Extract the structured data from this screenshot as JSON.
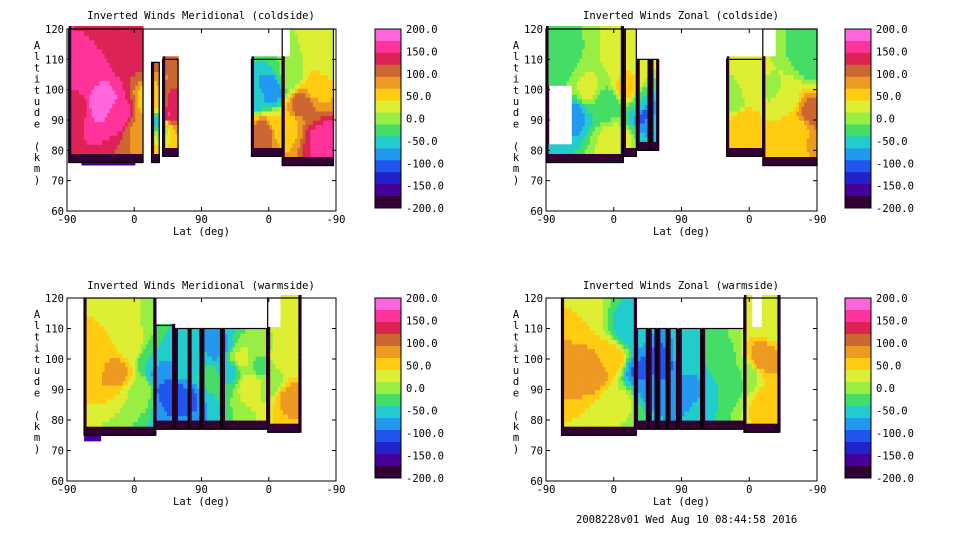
{
  "footer": "2008228v01 Wed Aug 10 08:44:58 2016",
  "colorbar": {
    "ticks": [
      "200.0",
      "150.0",
      "100.0",
      "50.0",
      "0.0",
      "-50.0",
      "-100.0",
      "-150.0",
      "-200.0"
    ],
    "colors": [
      "#ff66dd",
      "#ff3399",
      "#dd2255",
      "#cc6633",
      "#ee9922",
      "#ffcc11",
      "#ddee33",
      "#99ee44",
      "#44dd66",
      "#22cccc",
      "#2299ee",
      "#2255ee",
      "#2222cc",
      "#440099",
      "#330033"
    ]
  },
  "chart_data": [
    {
      "type": "heatmap",
      "title": "Inverted Winds Meridional (coldside)",
      "xlabel": "Lat (deg)",
      "ylabel": "Altitude (km)",
      "x_ticks": [
        "-90",
        "0",
        "90",
        "0",
        "-90"
      ],
      "y_ticks": [
        "60",
        "70",
        "80",
        "90",
        "100",
        "110",
        "120"
      ],
      "ylim": [
        60,
        120
      ],
      "zlim": [
        -200,
        200
      ],
      "regions": [
        {
          "x": [
            -88,
            -1
          ],
          "y": [
            76,
            120
          ],
          "bottom_x": [
            -73,
            -10
          ],
          "bottom_y": 75
        },
        {
          "x": [
            9,
            18
          ],
          "y": [
            76,
            109
          ]
        },
        {
          "x": [
            22,
            40
          ],
          "y": [
            78,
            110
          ]
        },
        {
          "x": [
            126,
            162
          ],
          "y": [
            78,
            110
          ]
        },
        {
          "x": [
            162,
            222
          ],
          "y": [
            75,
            120
          ],
          "top_cut_x": [
            162,
            171
          ],
          "top_cut_y": 110
        }
      ],
      "values": [
        [
          [
            -82,
            96,
            120
          ],
          [
            -70,
            102,
            170
          ],
          [
            -50,
            96,
            190
          ],
          [
            -30,
            92,
            170
          ],
          [
            -10,
            112,
            130
          ],
          [
            -5,
            88,
            90
          ],
          [
            12,
            96,
            40
          ],
          [
            18,
            90,
            -60
          ],
          [
            28,
            92,
            150
          ],
          [
            36,
            96,
            130
          ],
          [
            132,
            98,
            -60
          ],
          [
            140,
            86,
            110
          ],
          [
            150,
            100,
            -90
          ],
          [
            160,
            88,
            40
          ],
          [
            172,
            104,
            0
          ],
          [
            185,
            96,
            110
          ],
          [
            200,
            100,
            60
          ],
          [
            212,
            84,
            160
          ],
          [
            220,
            110,
            20
          ]
        ]
      ]
    },
    {
      "type": "heatmap",
      "title": "Inverted Winds Zonal (coldside)",
      "xlabel": "Lat (deg)",
      "ylabel": "Altitude (km)",
      "x_ticks": [
        "-90",
        "0",
        "90",
        "0",
        "-90"
      ],
      "y_ticks": [
        "60",
        "70",
        "80",
        "90",
        "100",
        "110",
        "120"
      ],
      "ylim": [
        60,
        120
      ],
      "zlim": [
        -200,
        200
      ],
      "regions": [
        {
          "x": [
            -90,
            -1
          ],
          "y": [
            76,
            120
          ],
          "hole": [
            -88,
            -62,
            82,
            100
          ]
        },
        {
          "x": [
            0,
            15
          ],
          "y": [
            78,
            120
          ]
        },
        {
          "x": [
            16,
            30
          ],
          "y": [
            80,
            110
          ]
        },
        {
          "x": [
            32,
            40
          ],
          "y": [
            80,
            110
          ]
        },
        {
          "x": [
            120,
            162
          ],
          "y": [
            78,
            110
          ]
        },
        {
          "x": [
            162,
            225
          ],
          "y": [
            75,
            120
          ],
          "top_cut_x": [
            162,
            175
          ],
          "top_cut_y": 110
        }
      ],
      "values": [
        [
          [
            -80,
            110,
            -30
          ],
          [
            -60,
            92,
            -80
          ],
          [
            -40,
            100,
            20
          ],
          [
            -20,
            96,
            -40
          ],
          [
            -8,
            84,
            30
          ],
          [
            5,
            100,
            60
          ],
          [
            12,
            112,
            40
          ],
          [
            20,
            96,
            -40
          ],
          [
            28,
            92,
            -110
          ],
          [
            36,
            90,
            -60
          ],
          [
            128,
            96,
            0
          ],
          [
            140,
            90,
            60
          ],
          [
            150,
            100,
            20
          ],
          [
            160,
            86,
            40
          ],
          [
            172,
            100,
            10
          ],
          [
            190,
            96,
            30
          ],
          [
            205,
            88,
            60
          ],
          [
            218,
            92,
            120
          ],
          [
            222,
            110,
            -40
          ]
        ]
      ]
    },
    {
      "type": "heatmap",
      "title": "Inverted Winds Meridional (warmside)",
      "xlabel": "Lat (deg)",
      "ylabel": "Altitude (km)",
      "x_ticks": [
        "-90",
        "0",
        "90",
        "0",
        "-90"
      ],
      "y_ticks": [
        "60",
        "70",
        "80",
        "90",
        "100",
        "110",
        "120"
      ],
      "ylim": [
        60,
        120
      ],
      "zlim": [
        -200,
        200
      ],
      "regions": [
        {
          "x": [
            -70,
            12
          ],
          "y": [
            75,
            120
          ],
          "bottom_x": [
            -70,
            -50
          ],
          "bottom_y": 73
        },
        {
          "x": [
            12,
            35
          ],
          "y": [
            77,
            111
          ]
        },
        {
          "x": [
            37,
            52
          ],
          "y": [
            77,
            110
          ]
        },
        {
          "x": [
            53,
            66
          ],
          "y": [
            77,
            110
          ]
        },
        {
          "x": [
            68,
            90
          ],
          "y": [
            77,
            110
          ]
        },
        {
          "x": [
            92,
            145
          ],
          "y": [
            77,
            110
          ]
        },
        {
          "x": [
            145,
            182
          ],
          "y": [
            76,
            120
          ],
          "top_cut_x": [
            145,
            160
          ],
          "top_cut_y": 110
        }
      ],
      "values": [
        [
          [
            -60,
            100,
            60
          ],
          [
            -45,
            112,
            40
          ],
          [
            -30,
            96,
            80
          ],
          [
            -15,
            104,
            30
          ],
          [
            -5,
            90,
            10
          ],
          [
            8,
            100,
            -40
          ],
          [
            20,
            96,
            -80
          ],
          [
            30,
            90,
            -120
          ],
          [
            42,
            96,
            -60
          ],
          [
            50,
            88,
            -100
          ],
          [
            60,
            100,
            -50
          ],
          [
            75,
            94,
            -30
          ],
          [
            85,
            104,
            -80
          ],
          [
            100,
            96,
            -50
          ],
          [
            115,
            100,
            20
          ],
          [
            125,
            92,
            30
          ],
          [
            135,
            98,
            -20
          ],
          [
            150,
            92,
            -10
          ],
          [
            160,
            100,
            20
          ],
          [
            170,
            88,
            80
          ],
          [
            178,
            112,
            30
          ]
        ]
      ]
    },
    {
      "type": "heatmap",
      "title": "Inverted Winds Zonal (warmside)",
      "xlabel": "Lat (deg)",
      "ylabel": "Altitude (km)",
      "x_ticks": [
        "-90",
        "0",
        "90",
        "0",
        "-90"
      ],
      "y_ticks": [
        "60",
        "70",
        "80",
        "90",
        "100",
        "110",
        "120"
      ],
      "ylim": [
        60,
        120
      ],
      "zlim": [
        -200,
        200
      ],
      "regions": [
        {
          "x": [
            -72,
            14
          ],
          "y": [
            75,
            120
          ]
        },
        {
          "x": [
            14,
            28
          ],
          "y": [
            77,
            110
          ]
        },
        {
          "x": [
            30,
            38
          ],
          "y": [
            77,
            110
          ]
        },
        {
          "x": [
            40,
            50
          ],
          "y": [
            77,
            110
          ]
        },
        {
          "x": [
            52,
            62
          ],
          "y": [
            77,
            110
          ]
        },
        {
          "x": [
            65,
            90
          ],
          "y": [
            77,
            110
          ]
        },
        {
          "x": [
            92,
            140
          ],
          "y": [
            77,
            110
          ]
        },
        {
          "x": [
            140,
            180
          ],
          "y": [
            76,
            120
          ],
          "top_cut_x": [
            148,
            160
          ],
          "top_cut_y": 110
        }
      ],
      "values": [
        [
          [
            -60,
            100,
            80
          ],
          [
            -50,
            112,
            40
          ],
          [
            -35,
            96,
            90
          ],
          [
            -15,
            100,
            60
          ],
          [
            -5,
            86,
            20
          ],
          [
            8,
            110,
            -60
          ],
          [
            20,
            96,
            -100
          ],
          [
            34,
            92,
            -80
          ],
          [
            45,
            98,
            -120
          ],
          [
            56,
            94,
            -90
          ],
          [
            72,
            100,
            -40
          ],
          [
            85,
            92,
            -70
          ],
          [
            100,
            96,
            -40
          ],
          [
            115,
            100,
            -20
          ],
          [
            128,
            94,
            -30
          ],
          [
            145,
            96,
            0
          ],
          [
            160,
            100,
            90
          ],
          [
            170,
            86,
            60
          ],
          [
            176,
            112,
            20
          ]
        ]
      ]
    }
  ]
}
